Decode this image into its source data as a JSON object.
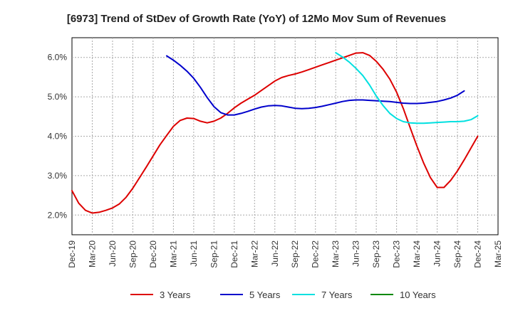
{
  "chart_data": {
    "type": "line",
    "title": "[6973]  Trend of StDev of Growth Rate (YoY) of 12Mo Mov Sum of Revenues",
    "xlabel": "",
    "ylabel": "",
    "y_format": "percent",
    "ylim": [
      1.5,
      6.5
    ],
    "yticks": [
      2.0,
      3.0,
      4.0,
      5.0,
      6.0
    ],
    "ytick_labels": [
      "2.0%",
      "3.0%",
      "4.0%",
      "5.0%",
      "6.0%"
    ],
    "grid": true,
    "legend_position": "bottom",
    "x_tick_labels": [
      "Dec-19",
      "Mar-20",
      "Jun-20",
      "Sep-20",
      "Dec-20",
      "Mar-21",
      "Jun-21",
      "Sep-21",
      "Dec-21",
      "Mar-22",
      "Jun-22",
      "Sep-22",
      "Dec-22",
      "Mar-23",
      "Jun-23",
      "Sep-23",
      "Dec-23",
      "Mar-24",
      "Jun-24",
      "Sep-24",
      "Dec-24",
      "Mar-25"
    ],
    "series": [
      {
        "name": "3 Years",
        "color": "#dd0000",
        "start_index": 0,
        "values": [
          2.62,
          2.3,
          2.12,
          2.05,
          2.07,
          2.12,
          2.18,
          2.28,
          2.45,
          2.68,
          2.95,
          3.22,
          3.5,
          3.78,
          4.02,
          4.25,
          4.4,
          4.46,
          4.45,
          4.38,
          4.34,
          4.38,
          4.46,
          4.58,
          4.72,
          4.84,
          4.94,
          5.04,
          5.16,
          5.28,
          5.4,
          5.49,
          5.54,
          5.58,
          5.63,
          5.69,
          5.75,
          5.81,
          5.87,
          5.93,
          5.99,
          6.05,
          6.11,
          6.12,
          6.05,
          5.9,
          5.7,
          5.45,
          5.12,
          4.7,
          4.22,
          3.75,
          3.32,
          2.95,
          2.7,
          2.7,
          2.88,
          3.12,
          3.4,
          3.7,
          4.0
        ]
      },
      {
        "name": "5 Years",
        "color": "#0000cc",
        "start_index": 14,
        "values": [
          6.04,
          5.93,
          5.8,
          5.65,
          5.47,
          5.24,
          4.98,
          4.75,
          4.6,
          4.54,
          4.54,
          4.58,
          4.63,
          4.69,
          4.74,
          4.77,
          4.78,
          4.77,
          4.74,
          4.71,
          4.7,
          4.71,
          4.73,
          4.76,
          4.8,
          4.84,
          4.88,
          4.91,
          4.92,
          4.92,
          4.91,
          4.9,
          4.89,
          4.88,
          4.86,
          4.84,
          4.83,
          4.83,
          4.84,
          4.86,
          4.88,
          4.92,
          4.97,
          5.04,
          5.15
        ]
      },
      {
        "name": "7 Years",
        "color": "#00e0e0",
        "start_index": 39,
        "values": [
          6.12,
          6.01,
          5.88,
          5.72,
          5.54,
          5.3,
          5.02,
          4.78,
          4.58,
          4.45,
          4.37,
          4.34,
          4.33,
          4.33,
          4.34,
          4.35,
          4.36,
          4.37,
          4.37,
          4.38,
          4.42,
          4.52
        ]
      },
      {
        "name": "10 Years",
        "color": "#008800",
        "start_index": 0,
        "values": []
      }
    ]
  }
}
